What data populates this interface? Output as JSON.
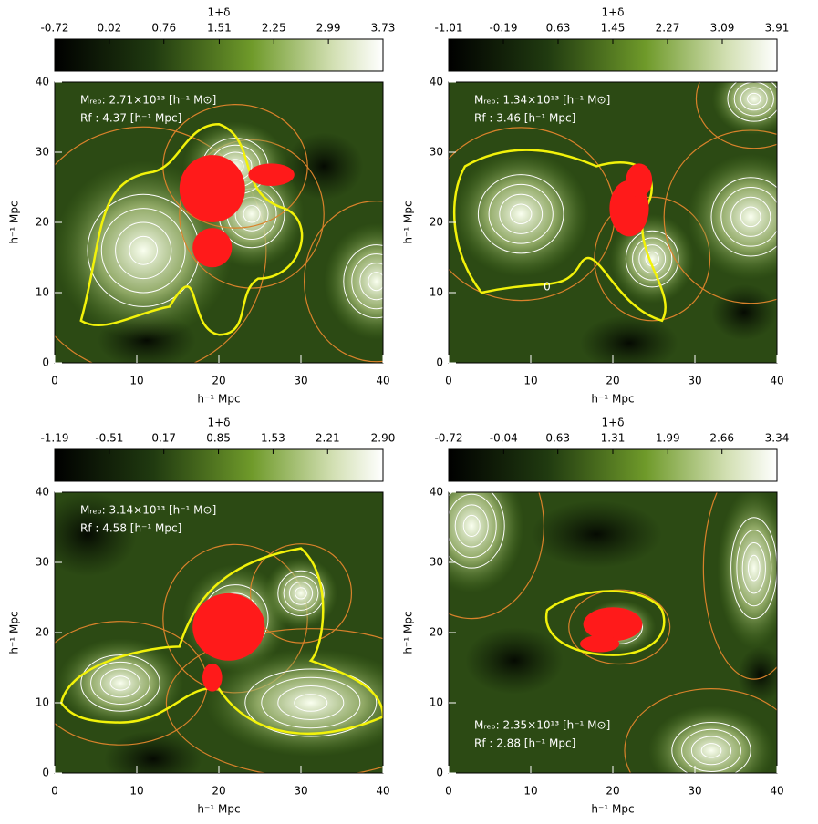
{
  "chart_data": [
    {
      "type": "density-map",
      "colorbar_label": "1+δ",
      "clim": [
        -0.72,
        3.73
      ],
      "cticks": [
        -0.72,
        0.02,
        0.76,
        1.51,
        2.25,
        2.99,
        3.73
      ],
      "xlabel": "h⁻¹ Mpc",
      "ylabel": "h⁻¹ Mpc",
      "xlim": [
        0,
        40
      ],
      "ylim": [
        0,
        40
      ],
      "xticks": [
        0,
        10,
        20,
        30,
        40
      ],
      "yticks": [
        0,
        10,
        20,
        30,
        40
      ],
      "annotations": [
        "Mᵣₑₚ: 2.71×10¹³ [h⁻¹ M⊙]",
        "Rf : 4.37 [h⁻¹ Mpc]"
      ]
    },
    {
      "type": "density-map",
      "colorbar_label": "1+δ",
      "clim": [
        -1.01,
        3.91
      ],
      "cticks": [
        -1.01,
        -0.19,
        0.63,
        1.45,
        2.27,
        3.09,
        3.91
      ],
      "xlabel": "h⁻¹ Mpc",
      "ylabel": "h⁻¹ Mpc",
      "xlim": [
        0,
        40
      ],
      "ylim": [
        0,
        40
      ],
      "xticks": [
        0,
        10,
        20,
        30,
        40
      ],
      "yticks": [
        0,
        10,
        20,
        30,
        40
      ],
      "annotations": [
        "Mᵣₑₚ: 1.34×10¹³ [h⁻¹ M⊙]",
        "Rf : 3.46 [h⁻¹ Mpc]"
      ],
      "contour_label": "0"
    },
    {
      "type": "density-map",
      "colorbar_label": "1+δ",
      "clim": [
        -1.19,
        2.9
      ],
      "cticks": [
        -1.19,
        -0.51,
        0.17,
        0.85,
        1.53,
        2.21,
        {
          "value": 2.9,
          "label": "2.90"
        }
      ],
      "xlabel": "h⁻¹ Mpc",
      "ylabel": "h⁻¹ Mpc",
      "xlim": [
        0,
        40
      ],
      "ylim": [
        0,
        40
      ],
      "xticks": [
        0,
        10,
        20,
        30,
        40
      ],
      "yticks": [
        0,
        10,
        20,
        30,
        40
      ],
      "annotations": [
        "Mᵣₑₚ: 3.14×10¹³ [h⁻¹ M⊙]",
        "Rf : 4.58 [h⁻¹ Mpc]"
      ]
    },
    {
      "type": "density-map",
      "colorbar_label": "1+δ",
      "clim": [
        -0.72,
        3.34
      ],
      "cticks": [
        -0.72,
        -0.04,
        0.63,
        1.31,
        1.99,
        2.66,
        3.34
      ],
      "xlabel": "h⁻¹ Mpc",
      "ylabel": "h⁻¹ Mpc",
      "xlim": [
        0,
        40
      ],
      "ylim": [
        0,
        40
      ],
      "xticks": [
        0,
        10,
        20,
        30,
        40
      ],
      "yticks": [
        0,
        10,
        20,
        30,
        40
      ],
      "annotations": [
        "Mᵣₑₚ: 2.35×10¹³ [h⁻¹ M⊙]",
        "Rf : 2.88 [h⁻¹ Mpc]"
      ]
    }
  ]
}
